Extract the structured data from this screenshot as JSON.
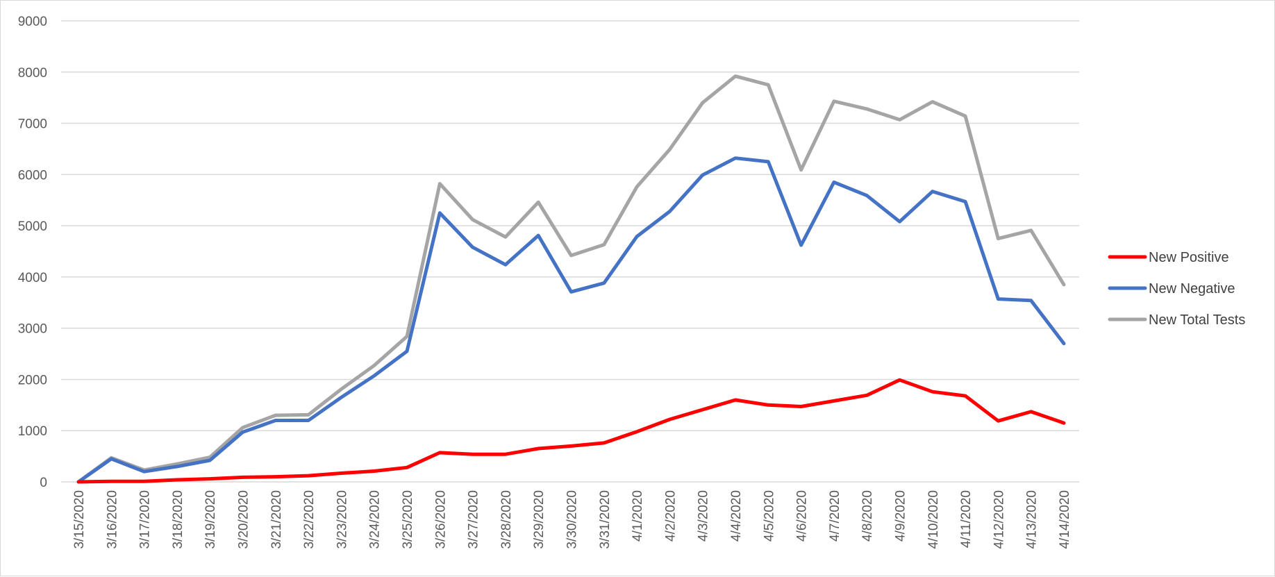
{
  "chart_data": {
    "type": "line",
    "title": "",
    "xlabel": "",
    "ylabel": "",
    "ylim": [
      0,
      9000
    ],
    "yticks": [
      0,
      1000,
      2000,
      3000,
      4000,
      5000,
      6000,
      7000,
      8000,
      9000
    ],
    "grid": true,
    "legend_position": "right",
    "categories": [
      "3/15/2020",
      "3/16/2020",
      "3/17/2020",
      "3/18/2020",
      "3/19/2020",
      "3/20/2020",
      "3/21/2020",
      "3/22/2020",
      "3/23/2020",
      "3/24/2020",
      "3/25/2020",
      "3/26/2020",
      "3/27/2020",
      "3/28/2020",
      "3/29/2020",
      "3/30/2020",
      "3/31/2020",
      "4/1/2020",
      "4/2/2020",
      "4/3/2020",
      "4/4/2020",
      "4/5/2020",
      "4/6/2020",
      "4/7/2020",
      "4/8/2020",
      "4/9/2020",
      "4/10/2020",
      "4/11/2020",
      "4/12/2020",
      "4/13/2020",
      "4/14/2020"
    ],
    "series": [
      {
        "name": "New Positive",
        "color": "#ff0000",
        "values": [
          0,
          10,
          10,
          40,
          60,
          90,
          100,
          120,
          170,
          210,
          280,
          570,
          540,
          540,
          650,
          700,
          760,
          980,
          1220,
          1410,
          1600,
          1500,
          1470,
          1580,
          1690,
          1990,
          1760,
          1680,
          1190,
          1370,
          1150
        ]
      },
      {
        "name": "New Negative",
        "color": "#4472c4",
        "values": [
          0,
          450,
          200,
          300,
          420,
          970,
          1200,
          1200,
          1650,
          2070,
          2550,
          5250,
          4580,
          4240,
          4810,
          3710,
          3880,
          4790,
          5280,
          5990,
          6320,
          6250,
          4620,
          5850,
          5590,
          5080,
          5670,
          5470,
          3570,
          3540,
          2700
        ]
      },
      {
        "name": "New Total Tests",
        "color": "#a5a5a5",
        "values": [
          0,
          470,
          230,
          350,
          480,
          1060,
          1300,
          1310,
          1810,
          2270,
          2840,
          5820,
          5120,
          4780,
          5460,
          4420,
          4630,
          5760,
          6490,
          7400,
          7920,
          7750,
          6090,
          7430,
          7280,
          7070,
          7420,
          7140,
          4750,
          4910,
          3850
        ]
      }
    ]
  }
}
